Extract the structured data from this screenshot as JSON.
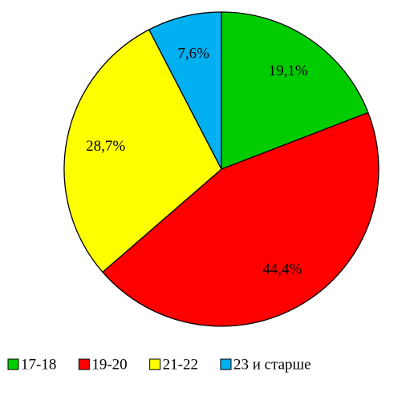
{
  "chart_data": {
    "type": "pie",
    "categories": [
      "17-18",
      "19-20",
      "21-22",
      "23 и старше"
    ],
    "values": [
      19.1,
      44.4,
      28.7,
      7.6
    ],
    "value_labels": [
      "19,1%",
      "44,4%",
      "28,7%",
      "7,6%"
    ],
    "colors": [
      "#00cc00",
      "#ff0000",
      "#ffff00",
      "#00b0f0"
    ],
    "legend": "bottom"
  }
}
